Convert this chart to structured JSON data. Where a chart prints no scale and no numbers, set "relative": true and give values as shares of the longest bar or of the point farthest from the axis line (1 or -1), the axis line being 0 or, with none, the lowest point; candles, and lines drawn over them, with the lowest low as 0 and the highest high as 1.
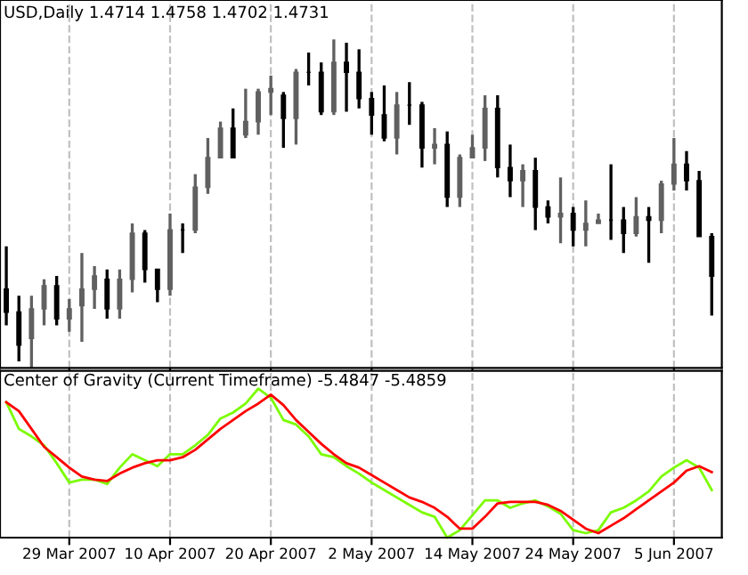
{
  "chart_data": [
    {
      "type": "candlestick",
      "title": "USD,Daily 1.4714 1.4758 1.4702 1.4731",
      "relative": true,
      "grid": "x",
      "tick_labels": false,
      "colors": [
        "#000000",
        "#000000",
        "#606060",
        "#606060",
        "#000000",
        "#606060",
        "#606060",
        "#606060",
        "#000000",
        "#606060",
        "#606060",
        "#000000",
        "#000000",
        "#606060",
        "#000000",
        "#606060",
        "#606060",
        "#606060",
        "#000000",
        "#606060",
        "#606060",
        "#606060",
        "#000000",
        "#606060",
        "#000000",
        "#000000",
        "#606060",
        "#000000",
        "#000000",
        "#000000",
        "#000000",
        "#606060",
        "#000000",
        "#000000",
        "#606060",
        "#000000",
        "#606060",
        "#606060",
        "#606060",
        "#000000",
        "#000000",
        "#606060",
        "#000000",
        "#000000",
        "#606060",
        "#000000",
        "#606060",
        "#606060",
        "#000000",
        "#000000",
        "#606060",
        "#000000",
        "#606060",
        "#606060",
        "#000000",
        "#000000",
        "#000000"
      ],
      "categories": [
        null,
        null,
        null,
        null,
        null,
        null,
        null,
        null,
        null,
        null,
        null,
        null,
        null,
        null,
        null,
        null,
        null,
        null,
        null,
        null,
        null,
        null,
        null,
        null,
        null,
        null,
        null,
        null,
        null,
        null,
        null,
        null,
        null,
        null,
        null,
        null,
        null,
        null,
        null,
        null,
        null,
        null,
        null,
        null,
        null,
        null,
        null,
        null,
        null,
        null,
        null,
        null,
        null,
        null,
        null,
        null,
        null
      ],
      "ohlc": [
        [
          0.24,
          0.37,
          0.13,
          0.17
        ],
        [
          0.17,
          0.22,
          0.02,
          0.07
        ],
        [
          0.09,
          0.22,
          0,
          0.18
        ],
        [
          0.18,
          0.27,
          0.13,
          0.25
        ],
        [
          0.25,
          0.28,
          0.13,
          0.15
        ],
        [
          0.15,
          0.21,
          0.11,
          0.18
        ],
        [
          0.19,
          0.35,
          0.08,
          0.24
        ],
        [
          0.24,
          0.31,
          0.18,
          0.28
        ],
        [
          0.27,
          0.3,
          0.15,
          0.18
        ],
        [
          0.18,
          0.3,
          0.15,
          0.27
        ],
        [
          0.27,
          0.44,
          0.23,
          0.41
        ],
        [
          0.41,
          0.42,
          0.26,
          0.3
        ],
        [
          0.3,
          0.3,
          0.2,
          0.24
        ],
        [
          0.24,
          0.47,
          0.22,
          0.42
        ],
        [
          0.42,
          0.44,
          0.35,
          0.42
        ],
        [
          0.42,
          0.59,
          0.41,
          0.55
        ],
        [
          0.55,
          0.7,
          0.53,
          0.64
        ],
        [
          0.64,
          0.75,
          0.64,
          0.73
        ],
        [
          0.73,
          0.79,
          0.64,
          0.64
        ],
        [
          0.71,
          0.85,
          0.7,
          0.75
        ],
        [
          0.75,
          0.85,
          0.71,
          0.84
        ],
        [
          0.84,
          0.89,
          0.77,
          0.85
        ],
        [
          0.83,
          0.84,
          0.67,
          0.76
        ],
        [
          0.76,
          0.91,
          0.68,
          0.9
        ],
        [
          0.9,
          0.96,
          0.86,
          0.9
        ],
        [
          0.9,
          0.93,
          0.77,
          0.78
        ],
        [
          0.78,
          1.0,
          0.77,
          0.93
        ],
        [
          0.93,
          0.99,
          0.78,
          0.9
        ],
        [
          0.9,
          0.97,
          0.79,
          0.82
        ],
        [
          0.82,
          0.84,
          0.71,
          0.77
        ],
        [
          0.77,
          0.86,
          0.69,
          0.7
        ],
        [
          0.7,
          0.84,
          0.65,
          0.8
        ],
        [
          0.8,
          0.87,
          0.74,
          0.8
        ],
        [
          0.8,
          0.81,
          0.61,
          0.67
        ],
        [
          0.67,
          0.73,
          0.62,
          0.68
        ],
        [
          0.68,
          0.72,
          0.49,
          0.52
        ],
        [
          0.52,
          0.65,
          0.49,
          0.64
        ],
        [
          0.64,
          0.71,
          0.64,
          0.67
        ],
        [
          0.67,
          0.83,
          0.63,
          0.79
        ],
        [
          0.79,
          0.83,
          0.58,
          0.61
        ],
        [
          0.61,
          0.68,
          0.52,
          0.57
        ],
        [
          0.57,
          0.62,
          0.49,
          0.6
        ],
        [
          0.6,
          0.64,
          0.42,
          0.49
        ],
        [
          0.49,
          0.51,
          0.44,
          0.46
        ],
        [
          0.46,
          0.58,
          0.38,
          0.47
        ],
        [
          0.47,
          0.49,
          0.37,
          0.42
        ],
        [
          0.42,
          0.51,
          0.37,
          0.44
        ],
        [
          0.44,
          0.47,
          0.44,
          0.45
        ],
        [
          0.45,
          0.62,
          0.39,
          0.45
        ],
        [
          0.45,
          0.49,
          0.35,
          0.41
        ],
        [
          0.41,
          0.52,
          0.4,
          0.46
        ],
        [
          0.46,
          0.49,
          0.32,
          0.45
        ],
        [
          0.45,
          0.57,
          0.41,
          0.56
        ],
        [
          0.56,
          0.7,
          0.54,
          0.62
        ],
        [
          0.62,
          0.66,
          0.54,
          0.57
        ],
        [
          0.57,
          0.6,
          0.4,
          0.4
        ],
        [
          0.4,
          0.41,
          0.16,
          0.28
        ]
      ]
    },
    {
      "type": "line",
      "title": "Center of Gravity (Current Timeframe) -5.4847 -5.4859",
      "relative": true,
      "grid": "x",
      "tick_labels": "x",
      "categories": [
        null,
        null,
        null,
        null,
        null,
        "29 Mar 2007",
        null,
        null,
        null,
        null,
        null,
        null,
        null,
        "10 Apr 2007",
        null,
        null,
        null,
        null,
        null,
        null,
        null,
        "20 Apr 2007",
        null,
        null,
        null,
        null,
        null,
        null,
        null,
        "2 May 2007",
        null,
        null,
        null,
        null,
        null,
        null,
        null,
        "14 May 2007",
        null,
        null,
        null,
        null,
        null,
        null,
        null,
        "24 May 2007",
        null,
        null,
        null,
        null,
        null,
        null,
        null,
        "5 Jun 2007",
        null,
        null,
        null
      ],
      "series": [
        {
          "color": "#7cfc00",
          "values": [
            0.91,
            0.73,
            0.68,
            0.62,
            0.5,
            0.37,
            0.39,
            0.39,
            0.36,
            0.47,
            0.56,
            0.52,
            0.48,
            0.56,
            0.56,
            0.62,
            0.69,
            0.8,
            0.84,
            0.9,
            1.0,
            0.94,
            0.79,
            0.76,
            0.68,
            0.56,
            0.54,
            0.48,
            0.43,
            0.37,
            0.32,
            0.27,
            0.22,
            0.17,
            0.14,
            0,
            0.05,
            0.15,
            0.25,
            0.25,
            0.2,
            0.23,
            0.25,
            0.21,
            0.16,
            0.05,
            0.03,
            0.05,
            0.17,
            0.2,
            0.25,
            0.31,
            0.41,
            0.47,
            0.52,
            0.47,
            0.32
          ]
        },
        {
          "color": "#ff0000",
          "values": [
            0.91,
            0.85,
            0.73,
            0.61,
            0.54,
            0.47,
            0.41,
            0.39,
            0.38,
            0.43,
            0.47,
            0.5,
            0.52,
            0.52,
            0.54,
            0.59,
            0.66,
            0.73,
            0.79,
            0.85,
            0.9,
            0.96,
            0.89,
            0.79,
            0.71,
            0.63,
            0.56,
            0.5,
            0.47,
            0.42,
            0.37,
            0.32,
            0.27,
            0.24,
            0.2,
            0.14,
            0.06,
            0.06,
            0.14,
            0.23,
            0.24,
            0.24,
            0.24,
            0.22,
            0.18,
            0.12,
            0.06,
            0.03,
            0.08,
            0.13,
            0.19,
            0.25,
            0.31,
            0.37,
            0.45,
            0.48,
            0.44
          ]
        }
      ]
    }
  ]
}
